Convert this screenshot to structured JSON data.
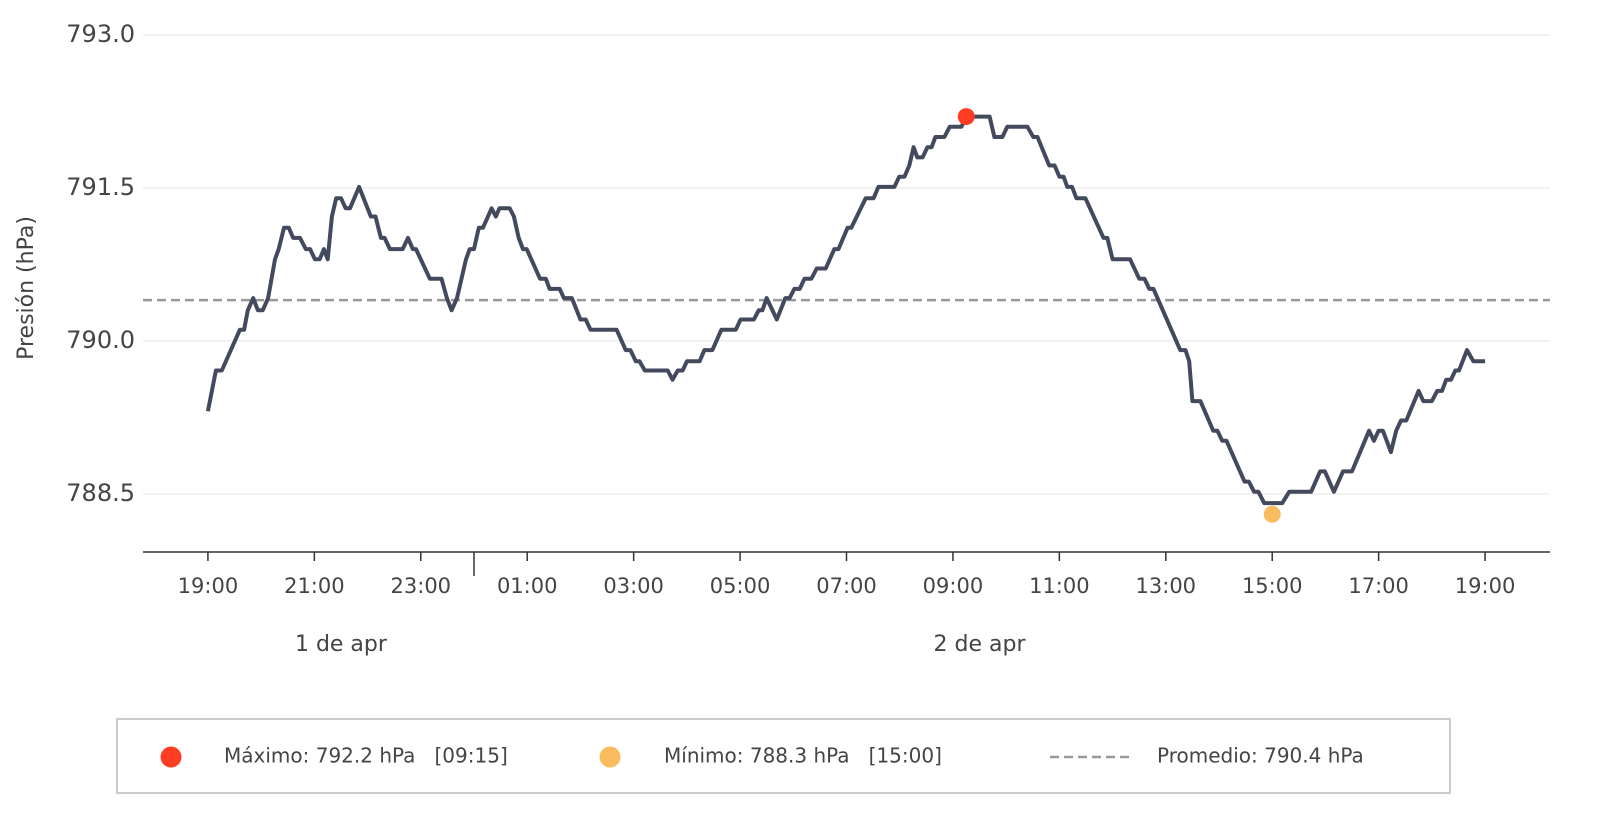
{
  "chart_data": {
    "type": "line",
    "y_label": "Presión (hPa)",
    "color": "#434a5e",
    "x": [
      19,
      19.15,
      19.26,
      19.6,
      19.68,
      19.75,
      19.85,
      19.94,
      20.03,
      20.13,
      20.26,
      20.33,
      20.43,
      20.52,
      20.6,
      20.73,
      20.84,
      20.92,
      21.01,
      21.1,
      21.18,
      21.25,
      21.33,
      21.41,
      21.5,
      21.59,
      21.67,
      21.84,
      22.06,
      22.15,
      22.25,
      22.32,
      22.42,
      22.66,
      22.76,
      22.85,
      22.91,
      23.17,
      23.39,
      23.49,
      23.58,
      23.68,
      23.85,
      23.92,
      24,
      24.09,
      24.17,
      24.33,
      24.41,
      24.48,
      24.67,
      24.75,
      24.84,
      24.92,
      24.99,
      25.24,
      25.35,
      25.42,
      25.61,
      25.69,
      25.84,
      26,
      26.1,
      26.19,
      26.68,
      26.85,
      26.94,
      27.04,
      27.11,
      27.21,
      27.64,
      27.73,
      27.83,
      27.92,
      28,
      28.24,
      28.33,
      28.48,
      28.65,
      28.92,
      29.01,
      29.26,
      29.35,
      29.42,
      29.5,
      29.69,
      29.85,
      29.93,
      30.02,
      30.12,
      30.21,
      30.34,
      30.44,
      30.61,
      30.77,
      30.85,
      31.02,
      31.09,
      31.36,
      31.51,
      31.6,
      31.9,
      31.99,
      32.09,
      32.18,
      32.26,
      32.33,
      32.43,
      32.52,
      32.6,
      32.67,
      32.84,
      32.94,
      33.16,
      33.25,
      33.69,
      33.78,
      33.93,
      34.02,
      34.4,
      34.51,
      34.59,
      34.81,
      34.91,
      35,
      35.08,
      35.15,
      35.24,
      35.32,
      35.49,
      35.83,
      35.9,
      36,
      36.33,
      36.5,
      36.6,
      36.69,
      36.77,
      37.27,
      37.37,
      37.44,
      37.5,
      37.65,
      37.89,
      37.97,
      38.06,
      38.14,
      38.48,
      38.56,
      38.66,
      38.74,
      38.85,
      39,
      39.19,
      39.32,
      39.73,
      39.9,
      39.99,
      40.16,
      40.33,
      40.5,
      40.82,
      40.91,
      41,
      41.08,
      41.23,
      41.33,
      41.42,
      41.52,
      41.75,
      41.84,
      42,
      42.1,
      42.19,
      42.27,
      42.36,
      42.44,
      42.51,
      42.66,
      42.78,
      43
    ],
    "values": [
      789.31,
      789.71,
      789.71,
      790.11,
      790.11,
      790.3,
      790.42,
      790.3,
      790.3,
      790.42,
      790.8,
      790.9,
      791.11,
      791.11,
      791.01,
      791.01,
      790.9,
      790.9,
      790.8,
      790.8,
      790.9,
      790.8,
      791.22,
      791.4,
      791.4,
      791.3,
      791.3,
      791.51,
      791.22,
      791.22,
      791.01,
      791.01,
      790.9,
      790.9,
      791.01,
      790.9,
      790.9,
      790.61,
      790.61,
      790.42,
      790.3,
      790.42,
      790.8,
      790.9,
      790.9,
      791.11,
      791.11,
      791.3,
      791.22,
      791.3,
      791.3,
      791.22,
      791.01,
      790.9,
      790.9,
      790.61,
      790.61,
      790.51,
      790.51,
      790.42,
      790.42,
      790.21,
      790.21,
      790.11,
      790.11,
      789.91,
      789.91,
      789.8,
      789.8,
      789.71,
      789.71,
      789.62,
      789.71,
      789.71,
      789.8,
      789.8,
      789.91,
      789.91,
      790.11,
      790.11,
      790.21,
      790.21,
      790.3,
      790.3,
      790.42,
      790.21,
      790.42,
      790.42,
      790.51,
      790.51,
      790.61,
      790.61,
      790.71,
      790.71,
      790.9,
      790.9,
      791.11,
      791.11,
      791.4,
      791.4,
      791.51,
      791.51,
      791.61,
      791.61,
      791.72,
      791.9,
      791.8,
      791.8,
      791.9,
      791.9,
      792,
      792,
      792.1,
      792.1,
      792.2,
      792.2,
      792,
      792,
      792.1,
      792.1,
      792,
      792,
      791.72,
      791.72,
      791.61,
      791.61,
      791.51,
      791.51,
      791.4,
      791.4,
      791.01,
      791.01,
      790.8,
      790.8,
      790.61,
      790.61,
      790.51,
      790.51,
      789.91,
      789.91,
      789.8,
      789.41,
      789.41,
      789.12,
      789.12,
      789.02,
      789.02,
      788.62,
      788.62,
      788.52,
      788.52,
      788.41,
      788.41,
      788.41,
      788.52,
      788.52,
      788.72,
      788.72,
      788.52,
      788.72,
      788.72,
      789.12,
      789.02,
      789.12,
      789.12,
      788.91,
      789.12,
      789.22,
      789.22,
      789.51,
      789.41,
      789.41,
      789.51,
      789.51,
      789.62,
      789.62,
      789.71,
      789.71,
      789.91,
      789.8,
      789.8
    ],
    "xlim": [
      17.78,
      44.22
    ],
    "xticks": [
      {
        "value": 19,
        "label": "19:00"
      },
      {
        "value": 21,
        "label": "21:00"
      },
      {
        "value": 23,
        "label": "23:00"
      },
      {
        "value": 25,
        "label": "01:00"
      },
      {
        "value": 27,
        "label": "03:00"
      },
      {
        "value": 29,
        "label": "05:00"
      },
      {
        "value": 31,
        "label": "07:00"
      },
      {
        "value": 33,
        "label": "09:00"
      },
      {
        "value": 35,
        "label": "11:00"
      },
      {
        "value": 37,
        "label": "13:00"
      },
      {
        "value": 39,
        "label": "15:00"
      },
      {
        "value": 41,
        "label": "17:00"
      },
      {
        "value": 43,
        "label": "19:00"
      }
    ],
    "day_separator": 24,
    "day_labels": [
      "1 de apr",
      "2 de apr"
    ],
    "ylim": [
      787.93,
      793.3
    ],
    "yticks": [
      788.5,
      {
        "value": 790,
        "label": "790.0"
      },
      791.5,
      {
        "value": 793,
        "label": "793.0"
      }
    ],
    "grid": true,
    "max": {
      "x": 33.25,
      "y": 792.2,
      "color": "#ff3d22",
      "label": "Máximo: 792.2 hPa   [09:15]"
    },
    "min": {
      "x": 39,
      "y": 788.3,
      "color": "#f9bc5e",
      "label": "Mínimo: 788.3 hPa   [15:00]"
    },
    "mean": {
      "value": 790.4,
      "color": "#999999",
      "label": "Promedio: 790.4 hPa"
    }
  }
}
